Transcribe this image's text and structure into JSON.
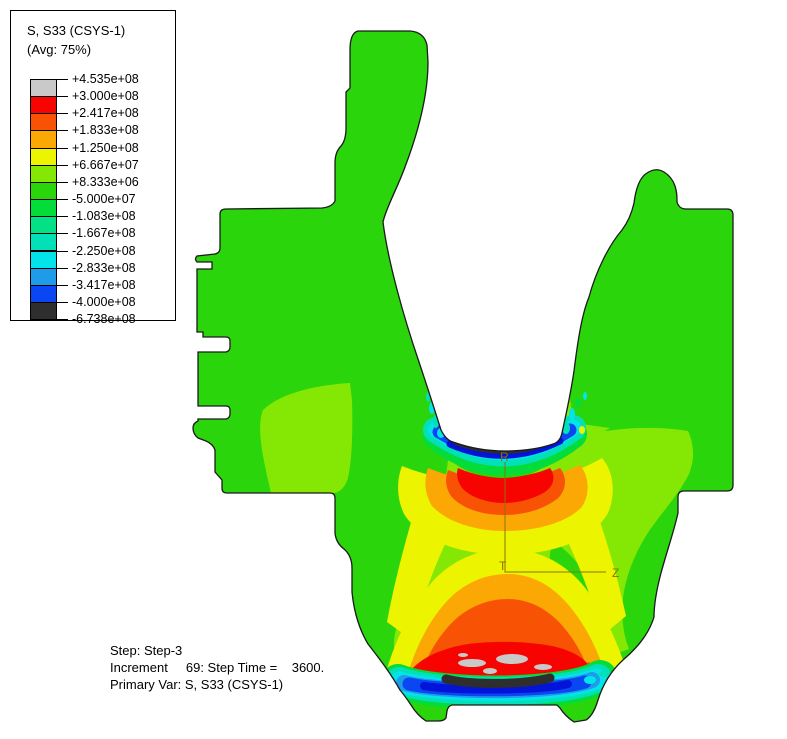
{
  "legend": {
    "title": "S, S33 (CSYS-1)",
    "subtitle": "(Avg: 75%)",
    "values": [
      "+4.535e+08",
      "+3.000e+08",
      "+2.417e+08",
      "+1.833e+08",
      "+1.250e+08",
      "+6.667e+07",
      "+8.333e+06",
      "-5.000e+07",
      "-1.083e+08",
      "-1.667e+08",
      "-2.250e+08",
      "-2.833e+08",
      "-3.417e+08",
      "-4.000e+08",
      "-6.738e+08"
    ],
    "band_colors": [
      "#C9C9C9",
      "#F80400",
      "#F85305",
      "#FBA805",
      "#ECF400",
      "#85E804",
      "#2BD50B",
      "#04DC3A",
      "#03E186",
      "#02E0B8",
      "#03E4EA",
      "#1E9BE9",
      "#0A46F2",
      "#2E2E2E"
    ]
  },
  "palette": {
    "gray": "#C9C9C9",
    "red": "#F80400",
    "orangered": "#F85305",
    "orange": "#FBA805",
    "yellow": "#ECF400",
    "chartreuse": "#85E804",
    "green": "#2BD50B",
    "green2": "#04DC3A",
    "spring": "#03E186",
    "teal": "#02E0B8",
    "cyan": "#03E4EA",
    "sky": "#1E9BE9",
    "royal": "#0A46F2",
    "deep": "#0313D8",
    "band_black": "#2E2E2E",
    "outline": "#1A1A1A"
  },
  "triad": {
    "r": "R",
    "t": "T",
    "z": "Z",
    "color": "#8B7500"
  },
  "footer": {
    "line1": "Step: Step-3",
    "line2": "Increment     69: Step Time =    3600.",
    "line3": "Primary Var: S, S33 (CSYS-1)"
  }
}
